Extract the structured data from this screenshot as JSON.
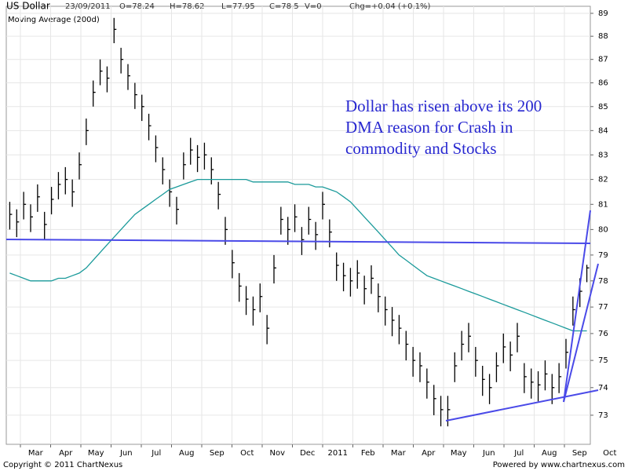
{
  "chart_data": {
    "type": "ohlc",
    "title": "US Dollar",
    "date": "23/09/2011",
    "open_label": "O=78.24",
    "high_label": "H=78.62",
    "low_label": "L=77.95",
    "close_label": "C=78.5",
    "volume_label": "V=0",
    "change_label": "Chg=+0.04 (+0.1%)",
    "annotation": "Dollar has risen above its 200 DMA reason for Crash in commodity and Stocks",
    "footer_left": "Copyright © 2011 ChartNexus",
    "footer_right": "Powered by www.chartnexus.com",
    "x_labels": [
      "Mar",
      "Apr",
      "May",
      "Jun",
      "Jul",
      "Aug",
      "Sep",
      "Oct",
      "Nov",
      "Dec",
      "2011",
      "Feb",
      "Mar",
      "Apr",
      "May",
      "Jun",
      "Jul",
      "Aug",
      "Sep",
      "Oct"
    ],
    "log_scale": true,
    "grid": true,
    "bar_color": "#000000",
    "ylim": [
      71.96,
      89.31
    ],
    "yticks": [
      73,
      74,
      75,
      76,
      77,
      78,
      79,
      80,
      81,
      82,
      83,
      84,
      85,
      86,
      87,
      88,
      89
    ],
    "high": [
      81.1,
      80.8,
      81.5,
      81.0,
      81.8,
      80.7,
      81.7,
      82.3,
      82.5,
      82.0,
      83.1,
      84.5,
      86.1,
      87.0,
      86.7,
      88.8,
      87.5,
      86.8,
      86.0,
      85.5,
      84.7,
      83.8,
      82.9,
      82.0,
      81.3,
      83.1,
      83.7,
      83.4,
      83.5,
      82.9,
      81.9,
      80.5,
      79.2,
      78.3,
      77.8,
      77.4,
      77.9,
      76.7,
      79.0,
      80.9,
      80.5,
      81.0,
      80.1,
      80.9,
      80.3,
      81.5,
      80.4,
      79.1,
      78.7,
      78.5,
      78.8,
      78.2,
      78.6,
      77.9,
      77.4,
      77.0,
      76.7,
      76.1,
      75.5,
      75.3,
      74.7,
      74.1,
      73.7,
      73.7,
      75.3,
      76.1,
      76.4,
      75.5,
      74.8,
      74.5,
      75.3,
      76.0,
      75.7,
      76.4,
      74.9,
      74.7,
      74.6,
      75.0,
      74.5,
      74.9,
      75.8,
      77.4,
      78.1,
      78.62
    ],
    "low": [
      80.0,
      79.7,
      80.4,
      79.9,
      80.7,
      79.6,
      80.6,
      81.2,
      81.4,
      80.9,
      82.0,
      83.4,
      85.0,
      85.9,
      85.6,
      87.7,
      86.4,
      85.7,
      84.9,
      84.4,
      83.6,
      82.7,
      81.8,
      80.9,
      80.2,
      82.0,
      82.6,
      82.3,
      82.4,
      81.8,
      80.8,
      79.4,
      78.1,
      77.2,
      76.7,
      76.3,
      76.8,
      75.6,
      77.9,
      79.8,
      79.4,
      79.9,
      79.0,
      79.8,
      79.2,
      80.4,
      79.3,
      78.0,
      77.6,
      77.4,
      77.7,
      77.1,
      77.5,
      76.8,
      76.3,
      75.9,
      75.6,
      75.0,
      74.4,
      74.2,
      73.6,
      73.0,
      72.6,
      72.6,
      74.2,
      75.0,
      75.3,
      74.4,
      73.7,
      73.4,
      74.2,
      74.9,
      74.6,
      75.3,
      73.8,
      73.6,
      73.5,
      73.9,
      73.4,
      73.8,
      74.7,
      76.3,
      77.0,
      77.95
    ],
    "close": [
      80.6,
      80.3,
      81.0,
      80.5,
      81.3,
      80.2,
      81.2,
      81.8,
      82.0,
      81.5,
      82.6,
      84.0,
      85.6,
      86.5,
      86.2,
      88.3,
      87.0,
      86.3,
      85.5,
      85.0,
      84.2,
      83.3,
      82.4,
      81.5,
      80.8,
      82.6,
      83.2,
      82.9,
      83.0,
      82.4,
      81.4,
      80.0,
      78.7,
      77.8,
      77.3,
      76.9,
      77.4,
      76.2,
      78.5,
      80.4,
      80.0,
      80.5,
      79.6,
      80.4,
      79.8,
      81.0,
      79.9,
      78.6,
      78.2,
      78.0,
      78.3,
      77.7,
      78.1,
      77.4,
      76.9,
      76.5,
      76.2,
      75.6,
      75.0,
      74.8,
      74.2,
      73.6,
      73.2,
      73.2,
      74.8,
      75.6,
      75.9,
      75.0,
      74.3,
      74.0,
      74.8,
      75.5,
      75.2,
      75.9,
      74.4,
      74.2,
      74.1,
      74.5,
      74.0,
      74.4,
      75.3,
      76.9,
      77.6,
      78.5
    ],
    "series": [
      {
        "name": "Moving Average (200d)",
        "color": "#1a9a9a",
        "values": [
          78.3,
          78.2,
          78.1,
          78.0,
          78.0,
          78.0,
          78.0,
          78.1,
          78.1,
          78.2,
          78.3,
          78.5,
          78.8,
          79.1,
          79.4,
          79.7,
          80.0,
          80.3,
          80.6,
          80.8,
          81.0,
          81.2,
          81.4,
          81.6,
          81.7,
          81.8,
          81.9,
          82.0,
          82.0,
          82.0,
          82.0,
          82.0,
          82.0,
          82.0,
          82.0,
          81.9,
          81.9,
          81.9,
          81.9,
          81.9,
          81.9,
          81.8,
          81.8,
          81.8,
          81.7,
          81.7,
          81.6,
          81.5,
          81.3,
          81.1,
          80.8,
          80.5,
          80.2,
          79.9,
          79.6,
          79.3,
          79.0,
          78.8,
          78.6,
          78.4,
          78.2,
          78.1,
          78.0,
          77.9,
          77.8,
          77.7,
          77.6,
          77.5,
          77.4,
          77.3,
          77.2,
          77.1,
          77.0,
          76.9,
          76.8,
          76.7,
          76.6,
          76.5,
          76.4,
          76.3,
          76.2,
          76.1,
          76.1,
          76.1
        ]
      }
    ]
  }
}
